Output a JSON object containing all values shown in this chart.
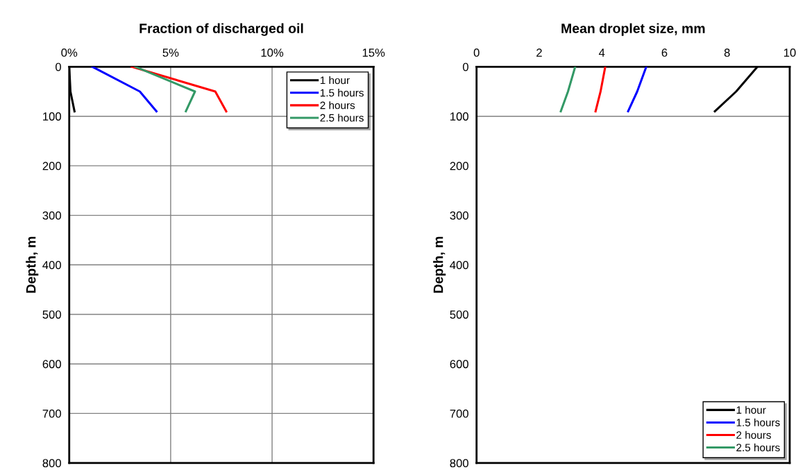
{
  "chart_data": [
    {
      "type": "line",
      "title": "Fraction of discharged oil",
      "ylabel": "Depth, m",
      "xlim": [
        0,
        15
      ],
      "xticks": [
        {
          "value": 0,
          "label": "0%"
        },
        {
          "value": 5,
          "label": "5%"
        },
        {
          "value": 10,
          "label": "10%"
        },
        {
          "value": 15,
          "label": "15%"
        }
      ],
      "ylim": [
        800,
        0
      ],
      "yticks": [
        0,
        100,
        200,
        300,
        400,
        500,
        600,
        700,
        800
      ],
      "grid": true,
      "legend": "top right",
      "series": [
        {
          "name": "1 hour",
          "color": "#000000",
          "x": [
            0,
            0.06,
            0.26
          ],
          "values": [
            0,
            50,
            90
          ]
        },
        {
          "name": "1.5 hours",
          "color": "#0000ff",
          "x": [
            1.14,
            3.48,
            4.3
          ],
          "values": [
            0,
            50,
            90
          ]
        },
        {
          "name": "2 hours",
          "color": "#ff0000",
          "x": [
            3.08,
            7.2,
            7.74
          ],
          "values": [
            0,
            50,
            90
          ]
        },
        {
          "name": "2.5 hours",
          "color": "#339966",
          "x": [
            3.25,
            6.2,
            5.75
          ],
          "values": [
            0,
            50,
            90
          ]
        }
      ]
    },
    {
      "type": "line",
      "title": "Mean droplet size, mm",
      "ylabel": "Depth, m",
      "xlim": [
        0,
        10
      ],
      "xticks": [
        0,
        2,
        4,
        6,
        8,
        10
      ],
      "ylim": [
        800,
        0
      ],
      "yticks": [
        0,
        100,
        200,
        300,
        400,
        500,
        600,
        700,
        800
      ],
      "grid": false,
      "legend": "bottom right",
      "ref_lines": [
        {
          "axis": "y",
          "value": 100
        }
      ],
      "series": [
        {
          "name": "1 hour",
          "color": "#000000",
          "x": [
            8.97,
            8.29,
            7.61
          ],
          "values": [
            0,
            50,
            90
          ]
        },
        {
          "name": "1.5 hours",
          "color": "#0000ff",
          "x": [
            5.42,
            5.13,
            4.84
          ],
          "values": [
            0,
            50,
            90
          ]
        },
        {
          "name": "2 hours",
          "color": "#ff0000",
          "x": [
            4.11,
            3.96,
            3.8
          ],
          "values": [
            0,
            50,
            90
          ]
        },
        {
          "name": "2.5 hours",
          "color": "#339966",
          "x": [
            3.15,
            2.92,
            2.69
          ],
          "values": [
            0,
            50,
            90
          ]
        }
      ]
    }
  ]
}
